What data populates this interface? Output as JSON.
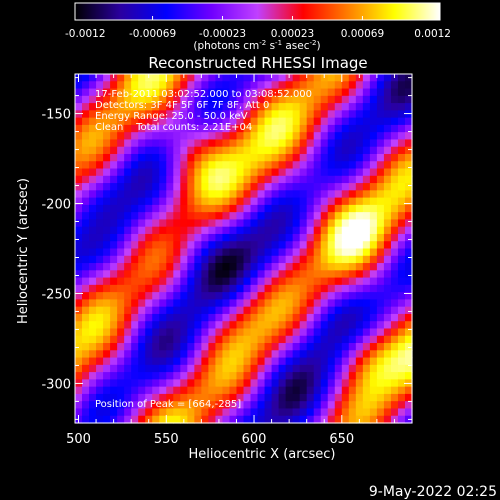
{
  "colorbar": {
    "ticks": [
      "-0.0012",
      "-0.00069",
      "-0.00023",
      "0.00023",
      "0.00069",
      "0.0012"
    ],
    "unit_parts": [
      "(photons cm",
      "-2",
      " s",
      "-1",
      " asec",
      "-2",
      ")"
    ]
  },
  "chart_data": {
    "type": "heatmap",
    "title": "Reconstructed RHESSI Image",
    "xlabel": "Heliocentric X (arcsec)",
    "ylabel": "Heliocentric Y (arcsec)",
    "xlim": [
      498,
      690
    ],
    "ylim": [
      -322,
      -128
    ],
    "x_ticks": [
      500,
      550,
      600,
      650
    ],
    "y_ticks": [
      -150,
      -200,
      -250,
      -300
    ],
    "value_range": [
      -0.0012,
      0.0012
    ],
    "grid_cells": [
      48,
      48
    ],
    "colormap": [
      "#000000",
      "#2a00a0",
      "#0000ff",
      "#7000ff",
      "#c040ff",
      "#ff0000",
      "#ff8000",
      "#ffff00",
      "#ffffff"
    ],
    "peak": [
      664,
      -285
    ],
    "annotations": [
      "17-Feb-2011 03:02:52.000 to 03:08:52.000",
      "Detectors: 3F 4F 5F 6F 7F 8F, Att 0",
      "Energy Range: 25.0 - 50.0 keV",
      "Clean    Total counts: 2.21E+04"
    ],
    "peak_label": "Position of Peak = [664,-285]"
  },
  "footer": {
    "timestamp": "9-May-2022 02:25"
  }
}
